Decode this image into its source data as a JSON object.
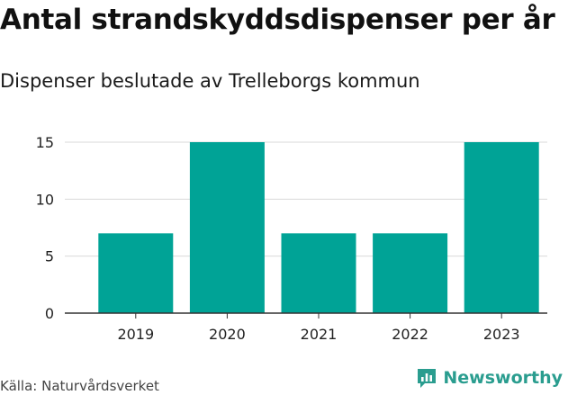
{
  "title": "Antal strandskyddsdispenser per år",
  "subtitle": "Dispenser beslutade av Trelleborgs kommun",
  "source": "Källa: Naturvårdsverket",
  "brand": {
    "name": "Newsworthy",
    "icon": "newsworthy-logo-icon",
    "color": "#2a9d8f"
  },
  "colors": {
    "bar": "#00a396",
    "grid": "#d9d9d9",
    "axis": "#333333"
  },
  "chart_data": {
    "type": "bar",
    "title": "Antal strandskyddsdispenser per år",
    "subtitle": "Dispenser beslutade av Trelleborgs kommun",
    "categories": [
      "2019",
      "2020",
      "2021",
      "2022",
      "2023"
    ],
    "values": [
      7,
      15,
      7,
      7,
      15
    ],
    "xlabel": "",
    "ylabel": "",
    "ylim": [
      0,
      15
    ],
    "yticks": [
      0,
      5,
      10,
      15
    ],
    "grid": true
  }
}
